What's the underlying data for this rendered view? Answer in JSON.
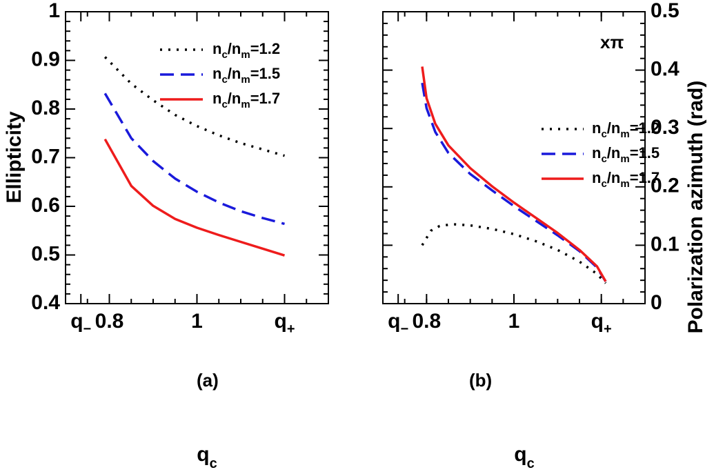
{
  "chart_data": [
    {
      "type": "line",
      "panel_label": "(a)",
      "ylabel": "Ellipticity",
      "xlabel_main": "q",
      "xlabel_sub": "c",
      "ylim": [
        0.4,
        1.0
      ],
      "xlim": [
        0.7,
        1.3
      ],
      "y_ticks": [
        {
          "value": 0.4,
          "label": "0.4"
        },
        {
          "value": 0.5,
          "label": "0.5"
        },
        {
          "value": 0.6,
          "label": "0.6"
        },
        {
          "value": 0.7,
          "label": "0.7"
        },
        {
          "value": 0.8,
          "label": "0.8"
        },
        {
          "value": 0.9,
          "label": "0.9"
        },
        {
          "value": 1.0,
          "label": "1"
        }
      ],
      "x_ticks": [
        {
          "value": 0.735,
          "main": "q",
          "sub": "−"
        },
        {
          "value": 0.8,
          "main": "0.8",
          "sub": ""
        },
        {
          "value": 1.0,
          "main": "1",
          "sub": ""
        },
        {
          "value": 1.2,
          "main": "q",
          "sub": "+"
        }
      ],
      "legend": {
        "position": "top-right"
      },
      "series": [
        {
          "name": "n_c/n_m=1.2",
          "legend_parts": [
            "n",
            "c",
            "/n",
            "m",
            "=1.2"
          ],
          "color": "#000000",
          "style": "dotted",
          "x": [
            0.79,
            0.85,
            0.9,
            0.95,
            1.0,
            1.05,
            1.1,
            1.15,
            1.2
          ],
          "y": [
            0.907,
            0.852,
            0.818,
            0.788,
            0.765,
            0.746,
            0.73,
            0.717,
            0.704
          ]
        },
        {
          "name": "n_c/n_m=1.5",
          "legend_parts": [
            "n",
            "c",
            "/n",
            "m",
            "=1.5"
          ],
          "color": "#1a1adb",
          "style": "dashed",
          "x": [
            0.79,
            0.85,
            0.9,
            0.95,
            1.0,
            1.05,
            1.1,
            1.15,
            1.2
          ],
          "y": [
            0.832,
            0.74,
            0.693,
            0.657,
            0.63,
            0.608,
            0.59,
            0.576,
            0.564
          ]
        },
        {
          "name": "n_c/n_m=1.7",
          "legend_parts": [
            "n",
            "c",
            "/n",
            "m",
            "=1.7"
          ],
          "color": "#ee1c1c",
          "style": "solid",
          "x": [
            0.79,
            0.85,
            0.9,
            0.95,
            1.0,
            1.05,
            1.1,
            1.15,
            1.2
          ],
          "y": [
            0.738,
            0.642,
            0.601,
            0.574,
            0.556,
            0.541,
            0.527,
            0.513,
            0.499
          ]
        }
      ]
    },
    {
      "type": "line",
      "panel_label": "(b)",
      "ylabel": "Polarization azimuth (rad)",
      "xlabel_main": "q",
      "xlabel_sub": "c",
      "scale_annotation": "xπ",
      "ylim": [
        0.0,
        0.5
      ],
      "xlim": [
        0.7,
        1.3
      ],
      "y_ticks": [
        {
          "value": 0.0,
          "label": "0"
        },
        {
          "value": 0.1,
          "label": "0.1"
        },
        {
          "value": 0.2,
          "label": "0.2"
        },
        {
          "value": 0.3,
          "label": "0.3"
        },
        {
          "value": 0.4,
          "label": "0.4"
        },
        {
          "value": 0.5,
          "label": "0.5"
        }
      ],
      "x_ticks": [
        {
          "value": 0.735,
          "main": "q",
          "sub": "−"
        },
        {
          "value": 0.8,
          "main": "0.8",
          "sub": ""
        },
        {
          "value": 1.0,
          "main": "1",
          "sub": ""
        },
        {
          "value": 1.2,
          "main": "q",
          "sub": "+"
        }
      ],
      "legend": {
        "position": "upper-right"
      },
      "series": [
        {
          "name": "n_c/n_m=1.2",
          "legend_parts": [
            "n",
            "c",
            "/n",
            "m",
            "=1.2"
          ],
          "color": "#000000",
          "style": "dotted",
          "x": [
            0.79,
            0.81,
            0.83,
            0.86,
            0.9,
            0.95,
            1.0,
            1.05,
            1.1,
            1.15,
            1.19,
            1.21
          ],
          "y": [
            0.1,
            0.125,
            0.133,
            0.136,
            0.134,
            0.128,
            0.119,
            0.107,
            0.092,
            0.072,
            0.051,
            0.035
          ]
        },
        {
          "name": "n_c/n_m=1.5",
          "legend_parts": [
            "n",
            "c",
            "/n",
            "m",
            "=1.5"
          ],
          "color": "#1a1adb",
          "style": "dashed",
          "x": [
            0.79,
            0.8,
            0.82,
            0.85,
            0.9,
            0.95,
            1.0,
            1.05,
            1.1,
            1.15,
            1.19,
            1.21
          ],
          "y": [
            0.378,
            0.335,
            0.294,
            0.258,
            0.222,
            0.194,
            0.167,
            0.142,
            0.117,
            0.09,
            0.062,
            0.038
          ]
        },
        {
          "name": "n_c/n_m=1.7",
          "legend_parts": [
            "n",
            "c",
            "/n",
            "m",
            "=1.7"
          ],
          "color": "#ee1c1c",
          "style": "solid",
          "x": [
            0.79,
            0.8,
            0.82,
            0.85,
            0.9,
            0.95,
            1.0,
            1.05,
            1.1,
            1.15,
            1.19,
            1.21
          ],
          "y": [
            0.406,
            0.352,
            0.308,
            0.271,
            0.232,
            0.201,
            0.173,
            0.147,
            0.121,
            0.092,
            0.064,
            0.038
          ]
        }
      ]
    }
  ]
}
